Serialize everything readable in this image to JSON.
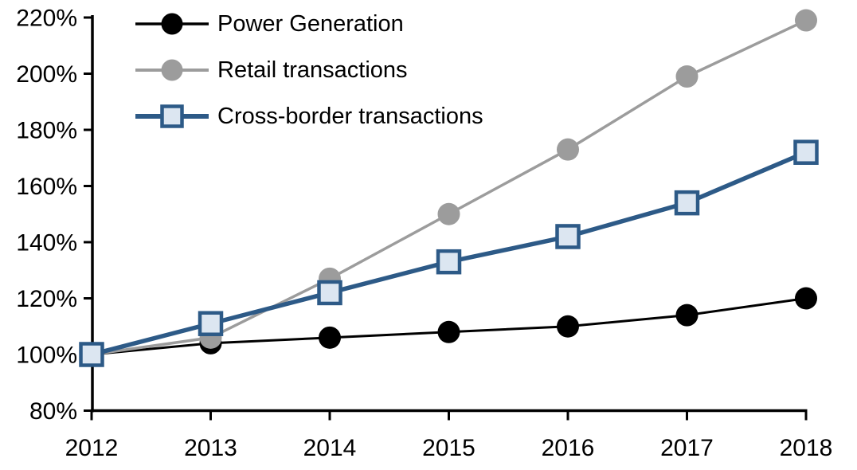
{
  "chart_data": {
    "type": "line",
    "title": "",
    "x_labels": [
      "2012",
      "2013",
      "2014",
      "2015",
      "2016",
      "2017",
      "2018"
    ],
    "y_axis": {
      "min": 80,
      "max": 220,
      "step": 20,
      "unit": "%",
      "tick_labels": [
        "80%",
        "100%",
        "120%",
        "140%",
        "160%",
        "180%",
        "200%",
        "220%"
      ]
    },
    "grid": false,
    "legend_position": "top-left",
    "axis_color": "#000000",
    "series": [
      {
        "name": "Power Generation",
        "color": "#000000",
        "marker": "circle",
        "marker_fill": "#000000",
        "line_width": 3,
        "values": [
          100,
          104,
          106,
          108,
          110,
          114,
          120
        ]
      },
      {
        "name": "Retail transactions",
        "color": "#9C9C9C",
        "marker": "circle",
        "marker_fill": "#9C9C9C",
        "line_width": 3.5,
        "values": [
          100,
          106,
          127,
          150,
          173,
          199,
          219
        ]
      },
      {
        "name": "Cross-border transactions",
        "color": "#2D5A87",
        "marker": "square",
        "marker_fill": "#DCE6F1",
        "line_width": 5.5,
        "values": [
          100,
          111,
          122,
          133,
          142,
          154,
          172
        ]
      }
    ]
  }
}
